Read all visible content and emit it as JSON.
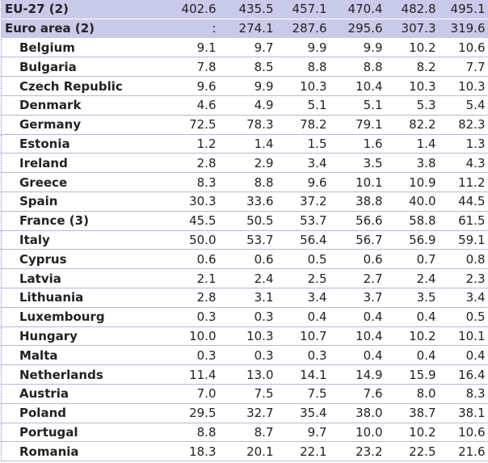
{
  "table": {
    "rows": [
      [
        "EU-27 (2)",
        "402.6",
        "435.5",
        "457.1",
        "470.4",
        "482.8",
        "495.1"
      ],
      [
        "Euro area (2)",
        ":",
        "274.1",
        "287.6",
        "295.6",
        "307.3",
        "319.6"
      ],
      [
        "Belgium",
        "9.1",
        "9.7",
        "9.9",
        "9.9",
        "10.2",
        "10.6"
      ],
      [
        "Bulgaria",
        "7.8",
        "8.5",
        "8.8",
        "8.8",
        "8.2",
        "7.7"
      ],
      [
        "Czech Republic",
        "9.6",
        "9.9",
        "10.3",
        "10.4",
        "10.3",
        "10.3"
      ],
      [
        "Denmark",
        "4.6",
        "4.9",
        "5.1",
        "5.1",
        "5.3",
        "5.4"
      ],
      [
        "Germany",
        "72.5",
        "78.3",
        "78.2",
        "79.1",
        "82.2",
        "82.3"
      ],
      [
        "Estonia",
        "1.2",
        "1.4",
        "1.5",
        "1.6",
        "1.4",
        "1.3"
      ],
      [
        "Ireland",
        "2.8",
        "2.9",
        "3.4",
        "3.5",
        "3.8",
        "4.3"
      ],
      [
        "Greece",
        "8.3",
        "8.8",
        "9.6",
        "10.1",
        "10.9",
        "11.2"
      ],
      [
        "Spain",
        "30.3",
        "33.6",
        "37.2",
        "38.8",
        "40.0",
        "44.5"
      ],
      [
        "France (3)",
        "45.5",
        "50.5",
        "53.7",
        "56.6",
        "58.8",
        "61.5"
      ],
      [
        "Italy",
        "50.0",
        "53.7",
        "56.4",
        "56.7",
        "56.9",
        "59.1"
      ],
      [
        "Cyprus",
        "0.6",
        "0.6",
        "0.5",
        "0.6",
        "0.7",
        "0.8"
      ],
      [
        "Latvia",
        "2.1",
        "2.4",
        "2.5",
        "2.7",
        "2.4",
        "2.3"
      ],
      [
        "Lithuania",
        "2.8",
        "3.1",
        "3.4",
        "3.7",
        "3.5",
        "3.4"
      ],
      [
        "Luxembourg",
        "0.3",
        "0.3",
        "0.4",
        "0.4",
        "0.4",
        "0.5"
      ],
      [
        "Hungary",
        "10.0",
        "10.3",
        "10.7",
        "10.4",
        "10.2",
        "10.1"
      ],
      [
        "Malta",
        "0.3",
        "0.3",
        "0.3",
        "0.4",
        "0.4",
        "0.4"
      ],
      [
        "Netherlands",
        "11.4",
        "13.0",
        "14.1",
        "14.9",
        "15.9",
        "16.4"
      ],
      [
        "Austria",
        "7.0",
        "7.5",
        "7.5",
        "7.6",
        "8.0",
        "8.3"
      ],
      [
        "Poland",
        "29.5",
        "32.7",
        "35.4",
        "38.0",
        "38.7",
        "38.1"
      ],
      [
        "Portugal",
        "8.8",
        "8.7",
        "9.7",
        "10.0",
        "10.2",
        "10.6"
      ],
      [
        "Romania",
        "18.3",
        "20.1",
        "22.1",
        "23.2",
        "22.5",
        "21.6"
      ]
    ]
  }
}
